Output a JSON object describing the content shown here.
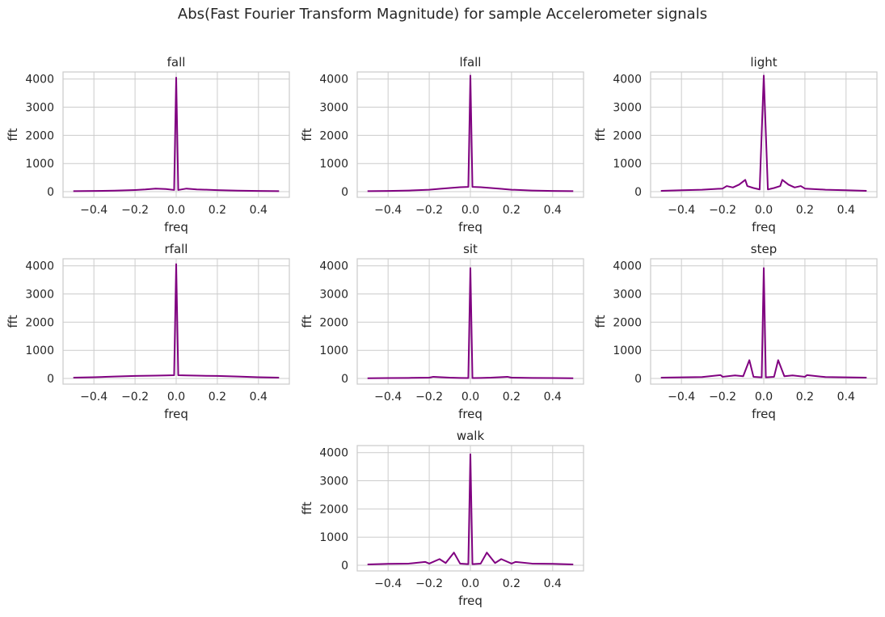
{
  "figure": {
    "title": "Abs(Fast Fourier Transform Magnitude) for sample Accelerometer signals",
    "line_color": "#800080",
    "grid_color": "#cccccc",
    "axes_edge_color": "#cccccc"
  },
  "chart_data": [
    {
      "type": "line",
      "title": "fall",
      "xlabel": "freq",
      "ylabel": "fft",
      "xlim": [
        -0.55,
        0.55
      ],
      "ylim": [
        -200,
        4250
      ],
      "xticks": [
        -0.4,
        -0.2,
        0.0,
        0.2,
        0.4
      ],
      "yticks": [
        0,
        1000,
        2000,
        3000,
        4000
      ],
      "grid": true,
      "series": [
        {
          "color": "#800080",
          "x": [
            -0.5,
            -0.4,
            -0.3,
            -0.2,
            -0.15,
            -0.1,
            -0.05,
            -0.01,
            0.0,
            0.01,
            0.05,
            0.1,
            0.15,
            0.2,
            0.3,
            0.4,
            0.5
          ],
          "y": [
            20,
            25,
            35,
            60,
            80,
            110,
            95,
            60,
            4050,
            60,
            110,
            80,
            70,
            55,
            35,
            25,
            20
          ]
        }
      ]
    },
    {
      "type": "line",
      "title": "lfall",
      "xlabel": "freq",
      "ylabel": "fft",
      "xlim": [
        -0.55,
        0.55
      ],
      "ylim": [
        -200,
        4250
      ],
      "xticks": [
        -0.4,
        -0.2,
        0.0,
        0.2,
        0.4
      ],
      "yticks": [
        0,
        1000,
        2000,
        3000,
        4000
      ],
      "grid": true,
      "series": [
        {
          "color": "#800080",
          "x": [
            -0.5,
            -0.4,
            -0.3,
            -0.2,
            -0.15,
            -0.1,
            -0.05,
            -0.01,
            0.0,
            0.01,
            0.05,
            0.1,
            0.15,
            0.2,
            0.3,
            0.4,
            0.5
          ],
          "y": [
            20,
            25,
            40,
            70,
            100,
            130,
            160,
            170,
            4120,
            170,
            160,
            130,
            100,
            70,
            40,
            25,
            20
          ]
        }
      ]
    },
    {
      "type": "line",
      "title": "light",
      "xlabel": "freq",
      "ylabel": "fft",
      "xlim": [
        -0.55,
        0.55
      ],
      "ylim": [
        -200,
        4250
      ],
      "xticks": [
        -0.4,
        -0.2,
        0.0,
        0.2,
        0.4
      ],
      "yticks": [
        0,
        1000,
        2000,
        3000,
        4000
      ],
      "grid": true,
      "series": [
        {
          "color": "#800080",
          "x": [
            -0.5,
            -0.4,
            -0.3,
            -0.2,
            -0.18,
            -0.15,
            -0.12,
            -0.09,
            -0.08,
            -0.05,
            -0.02,
            0.0,
            0.02,
            0.05,
            0.08,
            0.09,
            0.12,
            0.15,
            0.18,
            0.2,
            0.3,
            0.4,
            0.5
          ],
          "y": [
            30,
            50,
            70,
            110,
            200,
            150,
            250,
            420,
            200,
            130,
            80,
            4120,
            80,
            130,
            200,
            420,
            250,
            150,
            200,
            110,
            70,
            50,
            30
          ]
        }
      ]
    },
    {
      "type": "line",
      "title": "rfall",
      "xlabel": "freq",
      "ylabel": "fft",
      "xlim": [
        -0.55,
        0.55
      ],
      "ylim": [
        -200,
        4250
      ],
      "xticks": [
        -0.4,
        -0.2,
        0.0,
        0.2,
        0.4
      ],
      "yticks": [
        0,
        1000,
        2000,
        3000,
        4000
      ],
      "grid": true,
      "series": [
        {
          "color": "#800080",
          "x": [
            -0.5,
            -0.4,
            -0.3,
            -0.2,
            -0.1,
            -0.05,
            -0.01,
            0.0,
            0.01,
            0.05,
            0.1,
            0.2,
            0.3,
            0.4,
            0.5
          ],
          "y": [
            30,
            45,
            70,
            90,
            100,
            110,
            115,
            4060,
            115,
            110,
            100,
            90,
            70,
            45,
            30
          ]
        }
      ]
    },
    {
      "type": "line",
      "title": "sit",
      "xlabel": "freq",
      "ylabel": "fft",
      "xlim": [
        -0.55,
        0.55
      ],
      "ylim": [
        -200,
        4250
      ],
      "xticks": [
        -0.4,
        -0.2,
        0.0,
        0.2,
        0.4
      ],
      "yticks": [
        0,
        1000,
        2000,
        3000,
        4000
      ],
      "grid": true,
      "series": [
        {
          "color": "#800080",
          "x": [
            -0.5,
            -0.4,
            -0.3,
            -0.2,
            -0.18,
            -0.1,
            -0.05,
            -0.01,
            0.0,
            0.01,
            0.05,
            0.1,
            0.18,
            0.2,
            0.3,
            0.4,
            0.5
          ],
          "y": [
            10,
            15,
            20,
            30,
            60,
            30,
            20,
            15,
            3920,
            15,
            20,
            30,
            60,
            30,
            20,
            15,
            10
          ]
        }
      ]
    },
    {
      "type": "line",
      "title": "step",
      "xlabel": "freq",
      "ylabel": "fft",
      "xlim": [
        -0.55,
        0.55
      ],
      "ylim": [
        -200,
        4250
      ],
      "xticks": [
        -0.4,
        -0.2,
        0.0,
        0.2,
        0.4
      ],
      "yticks": [
        0,
        1000,
        2000,
        3000,
        4000
      ],
      "grid": true,
      "series": [
        {
          "color": "#800080",
          "x": [
            -0.5,
            -0.4,
            -0.3,
            -0.21,
            -0.2,
            -0.14,
            -0.1,
            -0.07,
            -0.05,
            -0.01,
            0.0,
            0.01,
            0.05,
            0.07,
            0.1,
            0.14,
            0.2,
            0.21,
            0.3,
            0.4,
            0.5
          ],
          "y": [
            30,
            40,
            50,
            120,
            60,
            110,
            80,
            650,
            60,
            40,
            3920,
            40,
            60,
            650,
            80,
            110,
            60,
            120,
            50,
            40,
            30
          ]
        }
      ]
    },
    {
      "type": "line",
      "title": "walk",
      "xlabel": "freq",
      "ylabel": "fft",
      "xlim": [
        -0.55,
        0.55
      ],
      "ylim": [
        -200,
        4250
      ],
      "xticks": [
        -0.4,
        -0.2,
        0.0,
        0.2,
        0.4
      ],
      "yticks": [
        0,
        1000,
        2000,
        3000,
        4000
      ],
      "grid": true,
      "series": [
        {
          "color": "#800080",
          "x": [
            -0.5,
            -0.4,
            -0.3,
            -0.22,
            -0.2,
            -0.15,
            -0.12,
            -0.08,
            -0.05,
            -0.01,
            0.0,
            0.01,
            0.05,
            0.08,
            0.12,
            0.15,
            0.2,
            0.22,
            0.3,
            0.4,
            0.5
          ],
          "y": [
            30,
            50,
            60,
            120,
            60,
            220,
            80,
            450,
            60,
            40,
            3940,
            40,
            60,
            450,
            80,
            220,
            60,
            120,
            60,
            50,
            30
          ]
        }
      ]
    }
  ]
}
